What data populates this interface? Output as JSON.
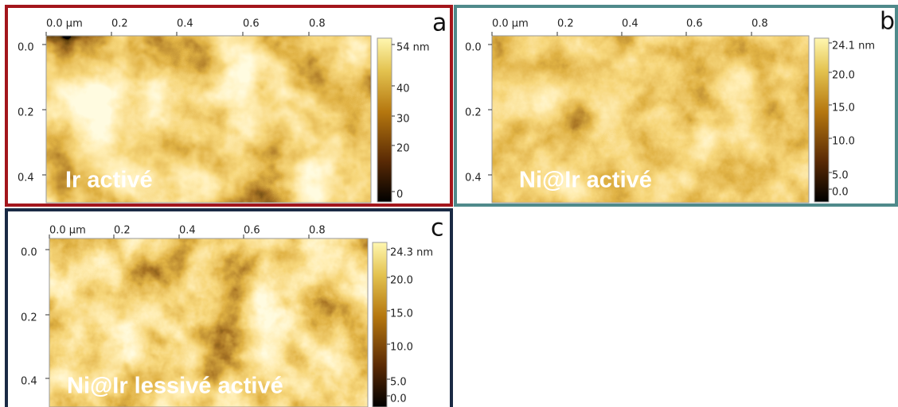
{
  "panels": [
    {
      "letter": "a",
      "caption": "Ir activé",
      "x_ticks": [
        "0.0 µm",
        "0.2",
        "0.4",
        "0.6",
        "0.8"
      ],
      "y_ticks": [
        "0.0",
        "0.2",
        "0.4"
      ],
      "colorbar_ticks": [
        "54 nm",
        "40",
        "30",
        "20",
        "0"
      ]
    },
    {
      "letter": "b",
      "caption": "Ni@Ir activé",
      "x_ticks": [
        "0.0 µm",
        "0.2",
        "0.4",
        "0.6",
        "0.8"
      ],
      "y_ticks": [
        "0.0",
        "0.2",
        "0.4"
      ],
      "colorbar_ticks": [
        "24.1 nm",
        "20.0",
        "15.0",
        "10.0",
        "5.0",
        "0.0"
      ]
    },
    {
      "letter": "c",
      "caption": "Ni@Ir lessivé activé",
      "x_ticks": [
        "0.0 µm",
        "0.2",
        "0.4",
        "0.6",
        "0.8"
      ],
      "y_ticks": [
        "0.0",
        "0.2",
        "0.4"
      ],
      "colorbar_ticks": [
        "24.3 nm",
        "20.0",
        "15.0",
        "10.0",
        "5.0",
        "0.0"
      ]
    }
  ]
}
